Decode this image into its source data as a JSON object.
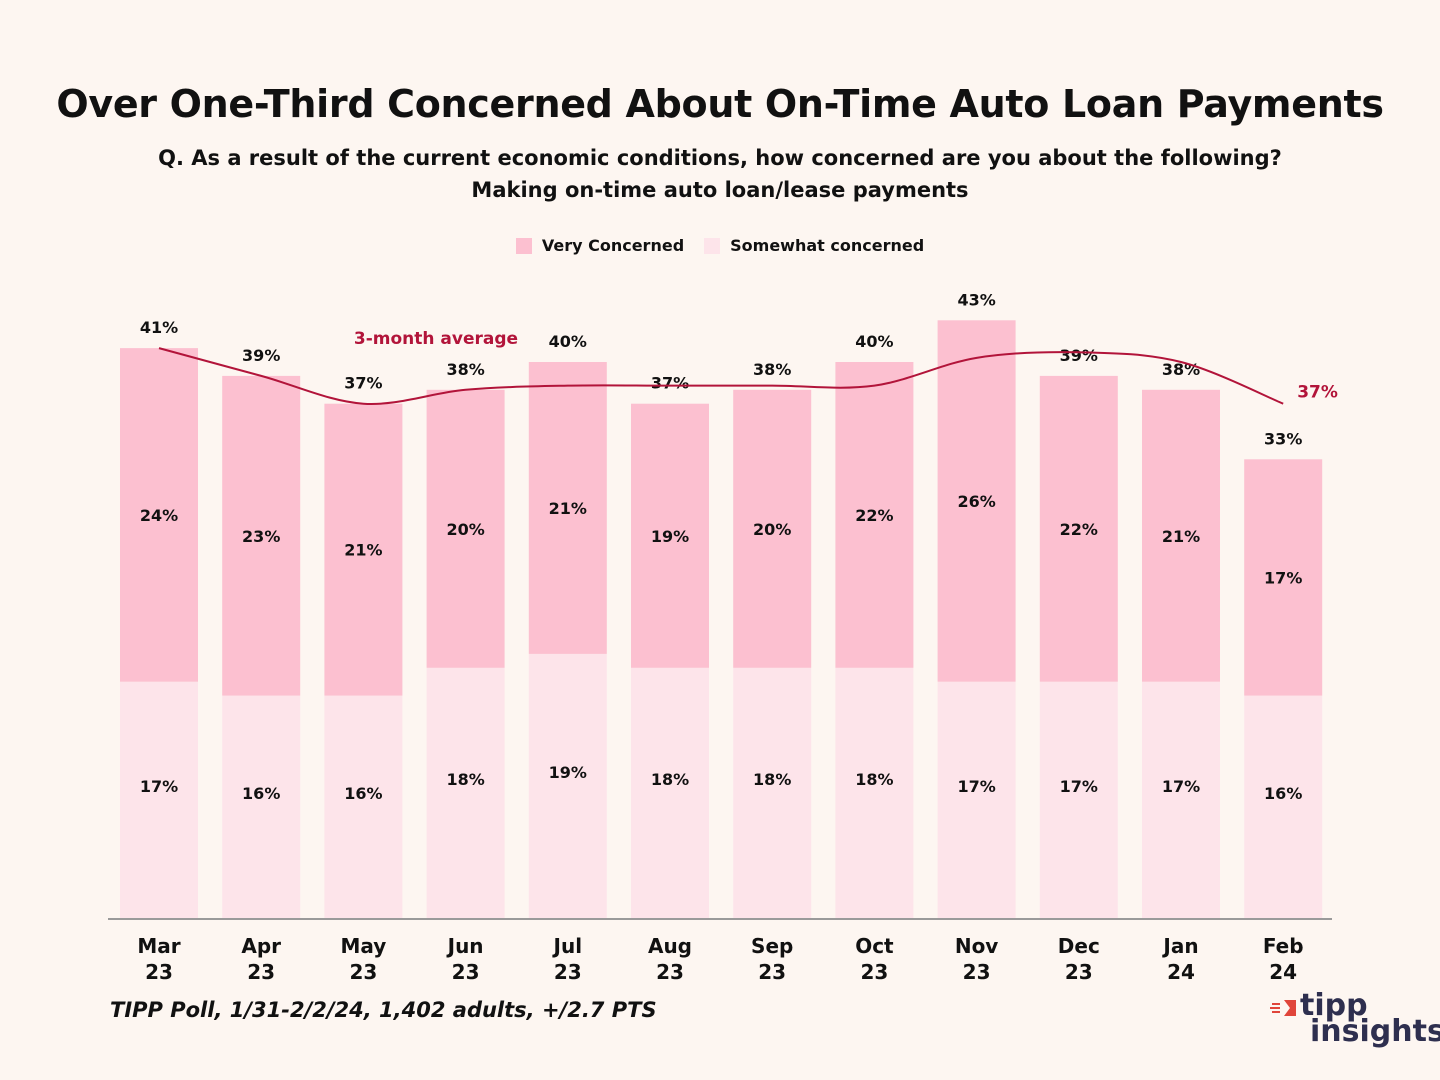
{
  "chart_data": {
    "type": "bar",
    "stacked": true,
    "title": "Over One-Third Concerned About On-Time Auto Loan Payments",
    "subtitle": [
      "Q. As a result of the current economic conditions, how concerned are you about the following?",
      "Making on-time auto loan/lease payments"
    ],
    "categories": [
      [
        "Mar",
        "23"
      ],
      [
        "Apr",
        "23"
      ],
      [
        "May",
        "23"
      ],
      [
        "Jun",
        "23"
      ],
      [
        "Jul",
        "23"
      ],
      [
        "Aug",
        "23"
      ],
      [
        "Sep",
        "23"
      ],
      [
        "Oct",
        "23"
      ],
      [
        "Nov",
        "23"
      ],
      [
        "Dec",
        "23"
      ],
      [
        "Jan",
        "24"
      ],
      [
        "Feb",
        "24"
      ]
    ],
    "series": [
      {
        "name": "Somewhat concerned",
        "color": "#fde4ea",
        "values": [
          17,
          16,
          16,
          18,
          19,
          18,
          18,
          18,
          17,
          17,
          17,
          16
        ]
      },
      {
        "name": "Very Concerned",
        "color": "#fcc0d0",
        "values": [
          24,
          23,
          21,
          20,
          21,
          19,
          20,
          22,
          26,
          22,
          21,
          17
        ]
      }
    ],
    "totals": [
      41,
      39,
      37,
      38,
      40,
      37,
      38,
      40,
      43,
      39,
      38,
      33
    ],
    "three_month_average": {
      "name": "3-month average",
      "color": "#b2143a",
      "values": [
        41,
        39,
        37,
        38,
        38.3,
        38.3,
        38.3,
        38.3,
        40.3,
        40.7,
        40,
        37
      ],
      "end_label": "37%"
    },
    "ylim": [
      0,
      50
    ],
    "legend": "top-center"
  },
  "source": "TIPP Poll, 1/31-2/2/24, 1,402 adults, +/2.7 PTS",
  "logo": {
    "line1": "tipp",
    "line2": "insights"
  }
}
